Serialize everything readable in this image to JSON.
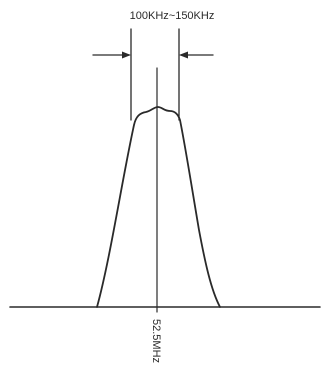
{
  "diagram": {
    "bandwidth_label": "100KHz~150KHz",
    "center_frequency_label": "52.5MHz"
  },
  "colors": {
    "ink": "#2a2a2a",
    "background": "#ffffff"
  }
}
